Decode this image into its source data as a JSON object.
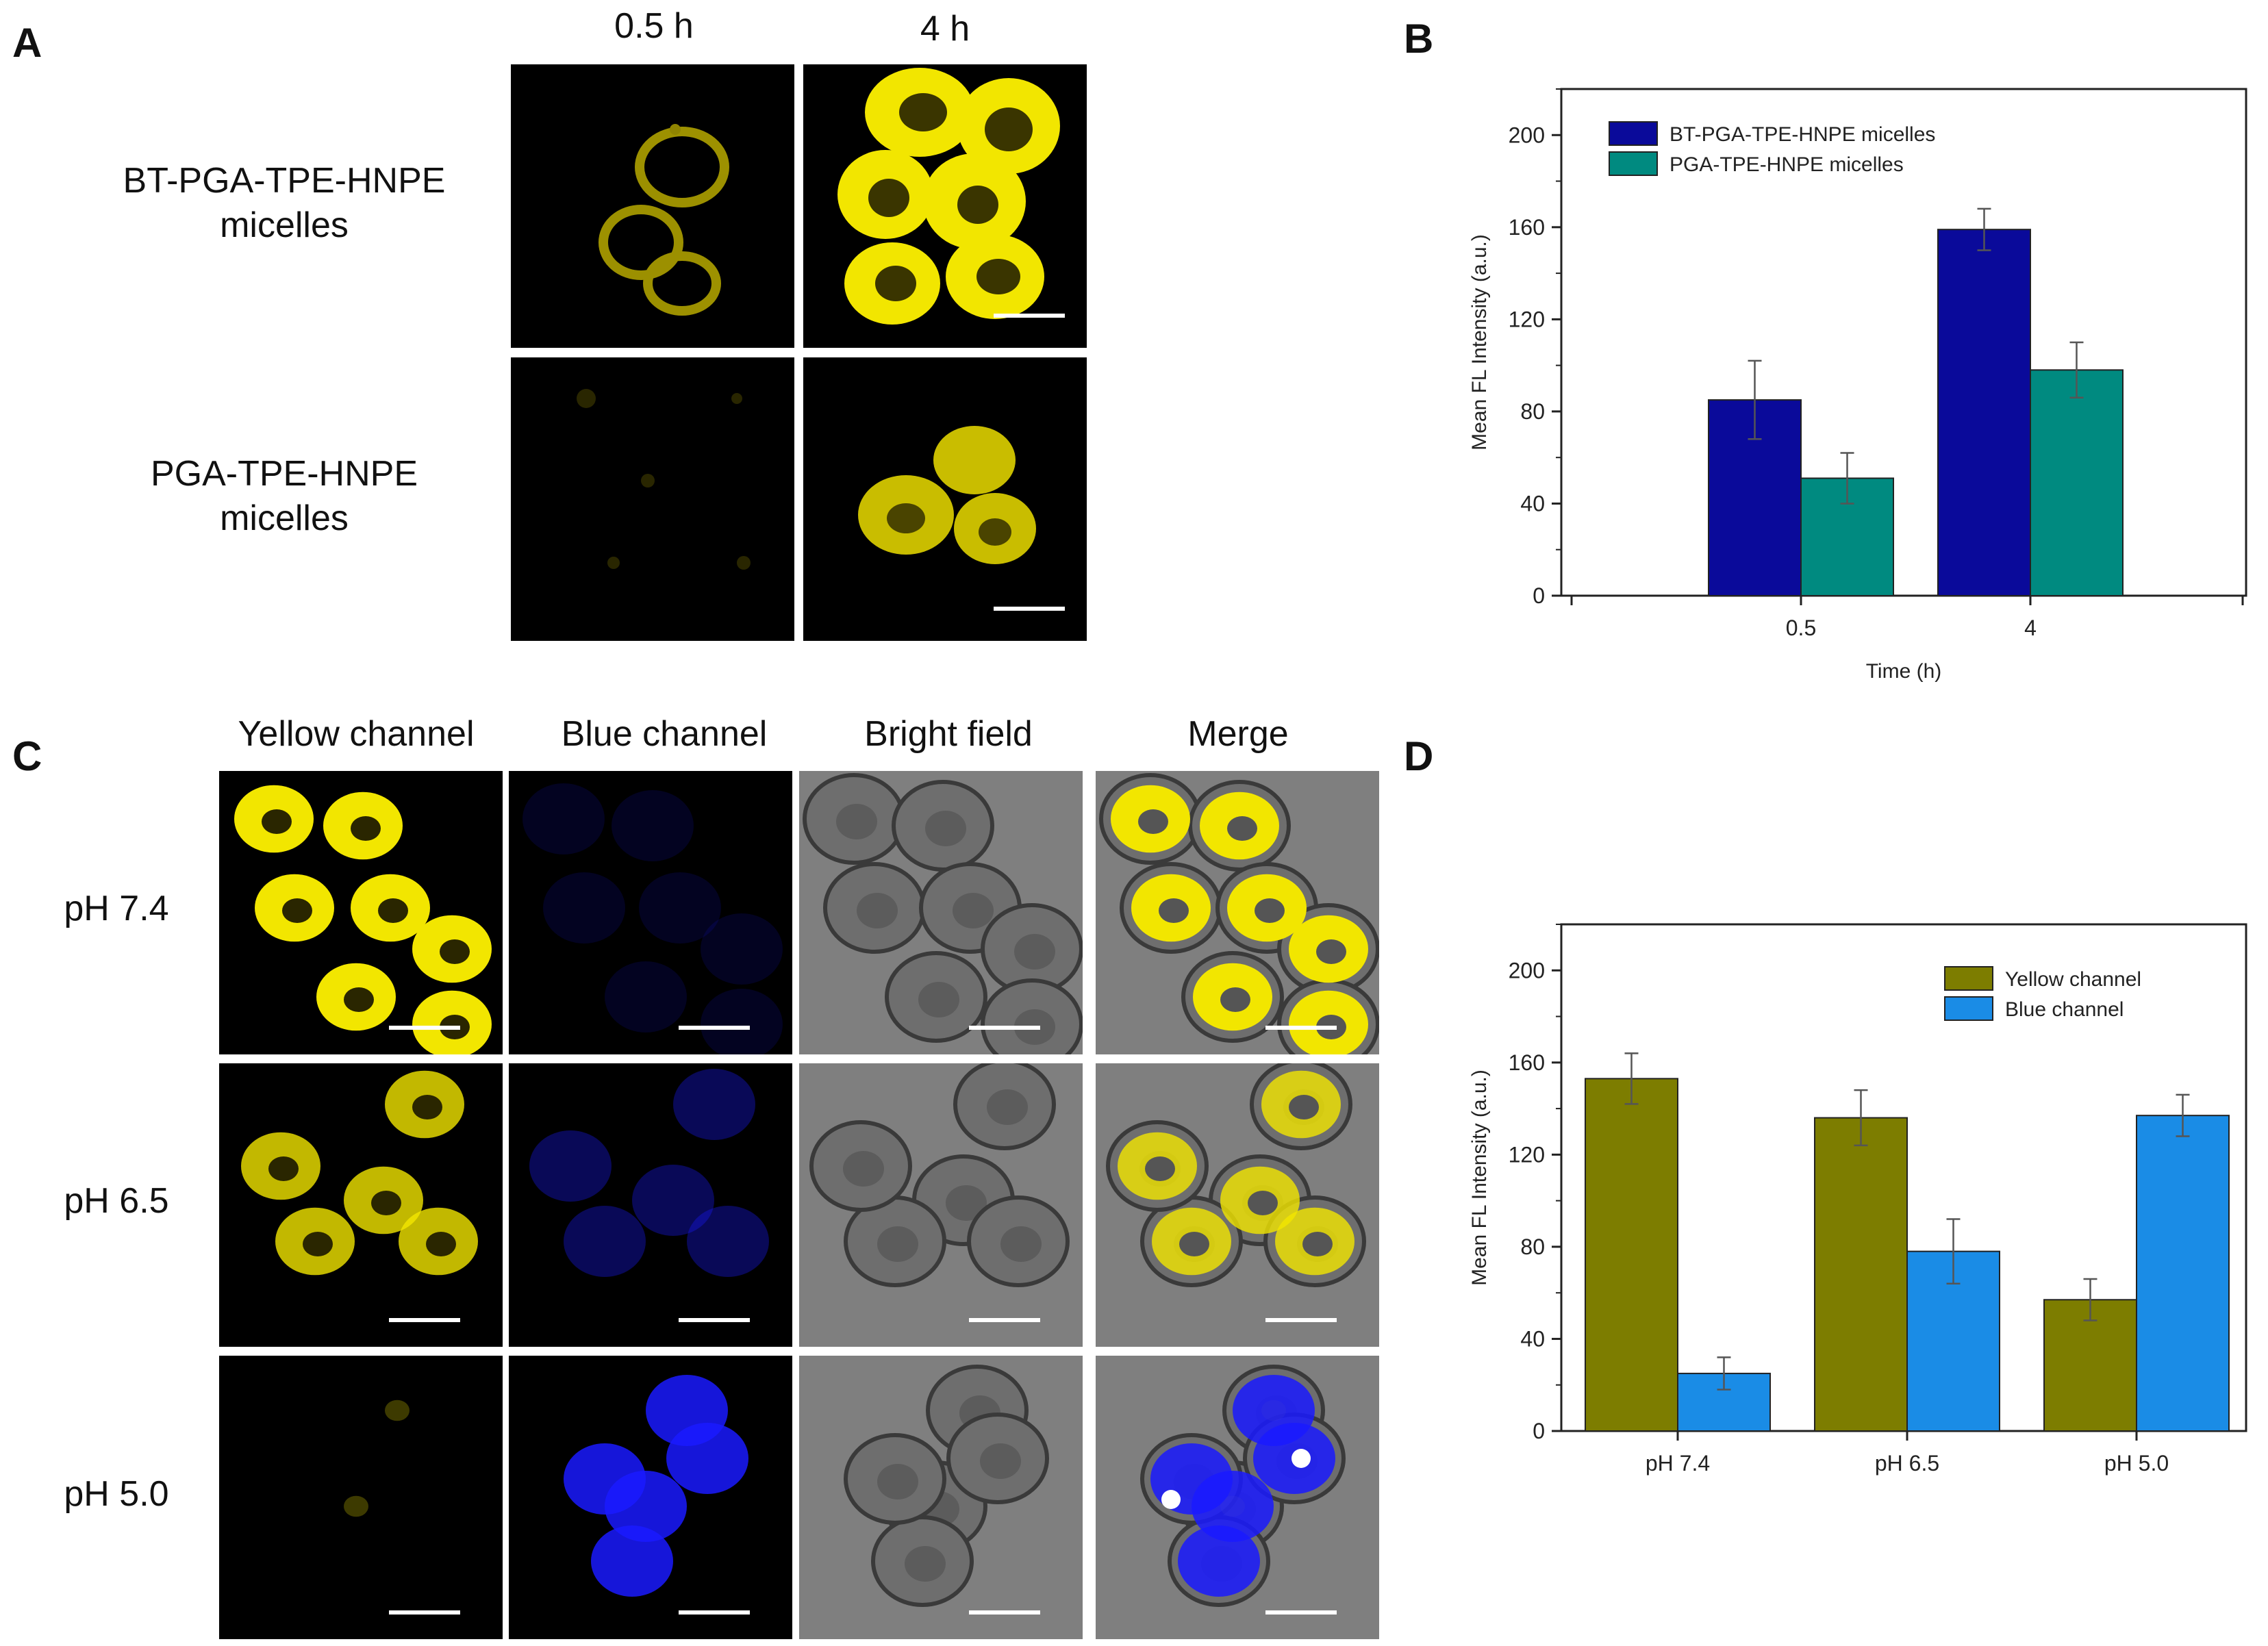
{
  "panels": {
    "A": {
      "letter": "A",
      "col_headers": [
        "0.5 h",
        "4 h"
      ],
      "row_labels": [
        {
          "line1": "BT-PGA-TPE-HNPE",
          "line2": "micelles"
        },
        {
          "line1": "PGA-TPE-HNPE",
          "line2": "micelles"
        }
      ]
    },
    "B": {
      "letter": "B"
    },
    "C": {
      "letter": "C",
      "col_headers": [
        "Yellow channel",
        "Blue channel",
        "Bright field",
        "Merge"
      ],
      "row_labels": [
        "pH 7.4",
        "pH 6.5",
        "pH 5.0"
      ]
    },
    "D": {
      "letter": "D"
    }
  },
  "colors": {
    "yellow_fluor": "#f2e600",
    "blue_fluor": "#1a1aff",
    "bright_field": "#8a8a8a",
    "navy_bar": "#00008b",
    "teal_bar": "#008080",
    "olive_bar": "#808000",
    "sky_bar": "#1e90ff"
  },
  "chart_data": [
    {
      "panel": "B",
      "type": "bar",
      "categories": [
        "0.5",
        "4"
      ],
      "series": [
        {
          "name": "BT-PGA-TPE-HNPE micelles",
          "values": [
            85,
            159
          ],
          "errors": [
            17,
            9
          ],
          "color": "#0a0a9a"
        },
        {
          "name": "PGA-TPE-HNPE micelles",
          "values": [
            51,
            98
          ],
          "errors": [
            11,
            12
          ],
          "color": "#008a80"
        }
      ],
      "xlabel": "Time (h)",
      "ylabel": "Mean FL Intensity (a.u.)",
      "ylim": [
        0,
        220
      ],
      "yticks": [
        0,
        40,
        80,
        120,
        160,
        200
      ],
      "legend": "top-left"
    },
    {
      "panel": "D",
      "type": "bar",
      "categories": [
        "pH 7.4",
        "pH 6.5",
        "pH 5.0"
      ],
      "series": [
        {
          "name": "Yellow channel",
          "values": [
            153,
            136,
            57
          ],
          "errors": [
            11,
            12,
            9
          ],
          "color": "#7d7d00"
        },
        {
          "name": "Blue channel",
          "values": [
            25,
            78,
            137
          ],
          "errors": [
            7,
            14,
            9
          ],
          "color": "#1a8ce6"
        }
      ],
      "xlabel": "",
      "ylabel": "Mean FL Intensity (a.u.)",
      "ylim": [
        0,
        220
      ],
      "yticks": [
        0,
        40,
        80,
        120,
        160,
        200
      ],
      "legend": "top-right"
    }
  ]
}
